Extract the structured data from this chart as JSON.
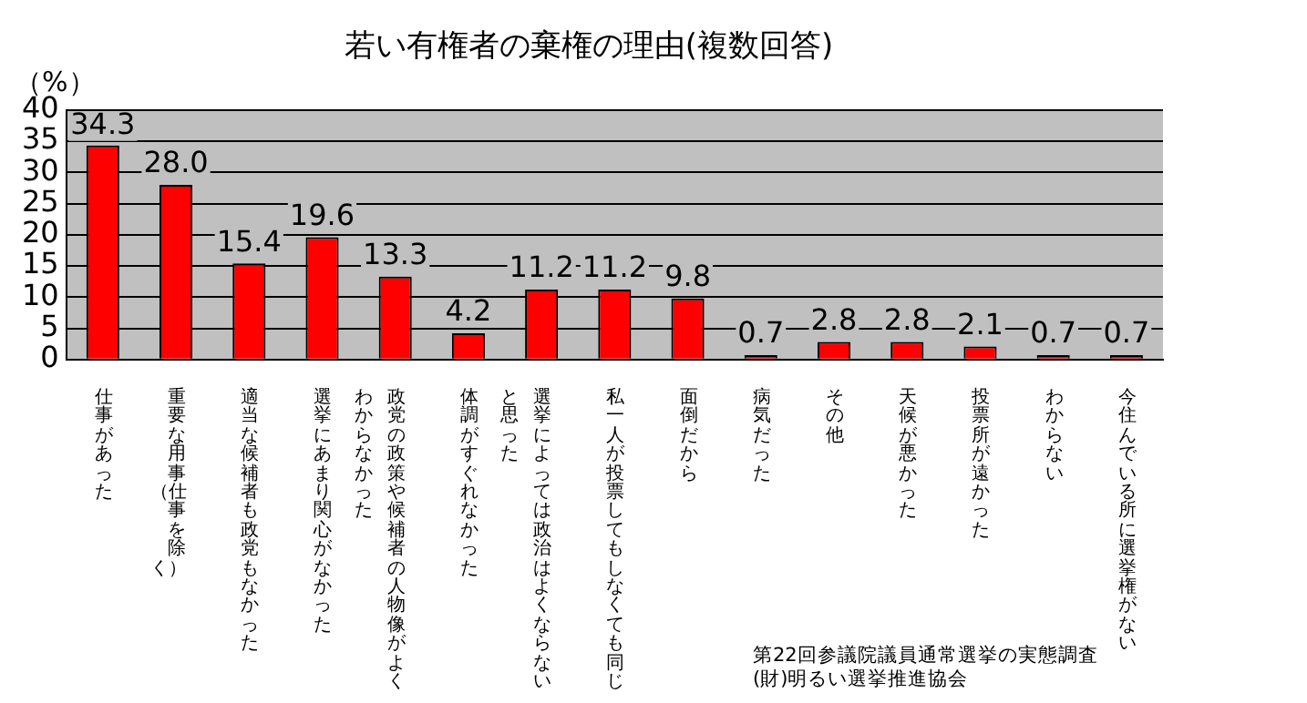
{
  "chart_data": {
    "type": "bar",
    "title": "若い有権者の棄権の理由(複数回答)",
    "ylabel": "（%）",
    "categories": [
      "仕事があった",
      "重要な用事（仕事を除く）",
      "適当な候補者も政党もなかった",
      "選挙にあまり関心がなかった",
      "政党の政策や候補者の人物像がよくわからなかった",
      "体調がすぐれなかった",
      "選挙によっては政治はよくならないと思った",
      "私一人が投票してもしなくても同じ",
      "面倒だから",
      "病気だった",
      "その他",
      "天候が悪かった",
      "投票所が遠かった",
      "わからない",
      "今住んでいる所に選挙権がない"
    ],
    "values": [
      34.3,
      28.0,
      15.4,
      19.6,
      13.3,
      4.2,
      11.2,
      11.2,
      9.8,
      0.7,
      2.8,
      2.8,
      2.1,
      0.7,
      0.7
    ],
    "value_labels": [
      "34.3",
      "28.0",
      "15.4",
      "19.6",
      "13.3",
      "4.2",
      "11.2",
      "11.2",
      "9.8",
      "0.7",
      "2.8",
      "2.8",
      "2.1",
      "0.7",
      "0.7"
    ],
    "color": "#ff0000",
    "ylim": [
      0,
      40
    ],
    "yticks": [
      0,
      5,
      10,
      15,
      20,
      25,
      30,
      35,
      40
    ],
    "grid": "y",
    "legend": false,
    "annotations": [
      "第22回参議院議員通常選挙の実態調査",
      "(財)明るい選挙推進協会"
    ]
  }
}
